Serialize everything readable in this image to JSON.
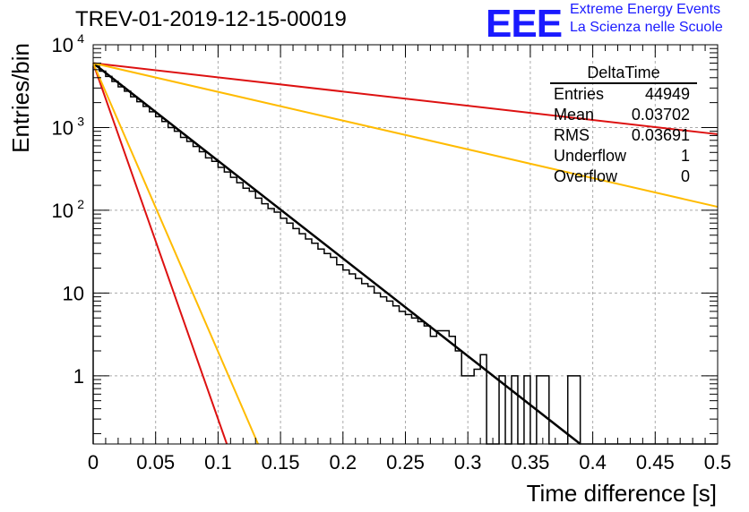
{
  "header": {
    "title": "TREV-01-2019-12-15-00019",
    "logo_text": "EEE",
    "logo_line1": "Extreme Energy Events",
    "logo_line2": "La Scienza nelle Scuole"
  },
  "stats": {
    "name": "DeltaTime",
    "rows": [
      {
        "label": "Entries",
        "value": "44949"
      },
      {
        "label": "Mean",
        "value": "0.03702"
      },
      {
        "label": "RMS",
        "value": "0.03691"
      },
      {
        "label": "Underflow",
        "value": "1"
      },
      {
        "label": "Overflow",
        "value": "0"
      }
    ]
  },
  "colors": {
    "histogram": "#000000",
    "fit": "#000000",
    "red": "#dd1111",
    "orange": "#ffbb00",
    "grid": "#aaaaaa"
  },
  "chart_data": {
    "type": "line",
    "xlabel": "Time difference [s]",
    "ylabel": "Entries/bin",
    "xlim": [
      0,
      0.5
    ],
    "ylim": [
      0.15,
      10000
    ],
    "yscale": "log",
    "grid": true,
    "xticks": [
      "0",
      "0.05",
      "0.1",
      "0.15",
      "0.2",
      "0.25",
      "0.3",
      "0.35",
      "0.4",
      "0.45",
      "0.5"
    ],
    "yticks": [
      {
        "value": 1,
        "label": "1"
      },
      {
        "value": 10,
        "label": "10"
      },
      {
        "value": 100,
        "label": "10^2"
      },
      {
        "value": 1000,
        "label": "10^3"
      },
      {
        "value": 10000,
        "label": "10^4"
      }
    ],
    "histogram": {
      "bin_width": 0.005,
      "counts": [
        5500,
        4800,
        4150,
        3600,
        3100,
        2750,
        2350,
        2050,
        1800,
        1550,
        1350,
        1180,
        1000,
        900,
        760,
        680,
        590,
        510,
        430,
        390,
        330,
        290,
        250,
        215,
        185,
        170,
        140,
        120,
        105,
        95,
        80,
        70,
        60,
        52,
        45,
        40,
        34,
        30,
        27,
        22,
        19,
        17,
        15,
        13,
        12,
        10,
        9,
        8,
        7,
        6,
        5.5,
        5,
        4.5,
        4,
        3,
        3.5,
        3.5,
        3,
        2,
        1,
        1,
        1.2,
        1.8,
        0.1,
        0.1,
        1,
        0.1,
        1,
        0.1,
        1,
        0.1,
        1,
        1,
        0.1,
        0.1,
        0.1,
        1,
        1,
        0.1,
        0.1,
        0.1,
        0.1,
        0.1,
        0.1,
        0.1,
        0.1,
        0.1,
        0.1,
        0.1,
        0.1,
        0.1,
        0.1,
        0.1,
        0.1,
        0.1,
        0.1,
        0.1,
        0.1,
        0.1,
        0.1
      ]
    },
    "lines": [
      {
        "color": "black",
        "points": [
          [
            0,
            6000
          ],
          [
            0.39,
            0.15
          ]
        ]
      },
      {
        "color": "red",
        "points": [
          [
            0,
            6000
          ],
          [
            0.5,
            830
          ]
        ]
      },
      {
        "color": "orange",
        "points": [
          [
            0,
            6000
          ],
          [
            0.5,
            110
          ]
        ]
      },
      {
        "color": "red",
        "points": [
          [
            0,
            6000
          ],
          [
            0.107,
            0.15
          ]
        ]
      },
      {
        "color": "orange",
        "points": [
          [
            0,
            6000
          ],
          [
            0.132,
            0.15
          ]
        ]
      }
    ]
  }
}
